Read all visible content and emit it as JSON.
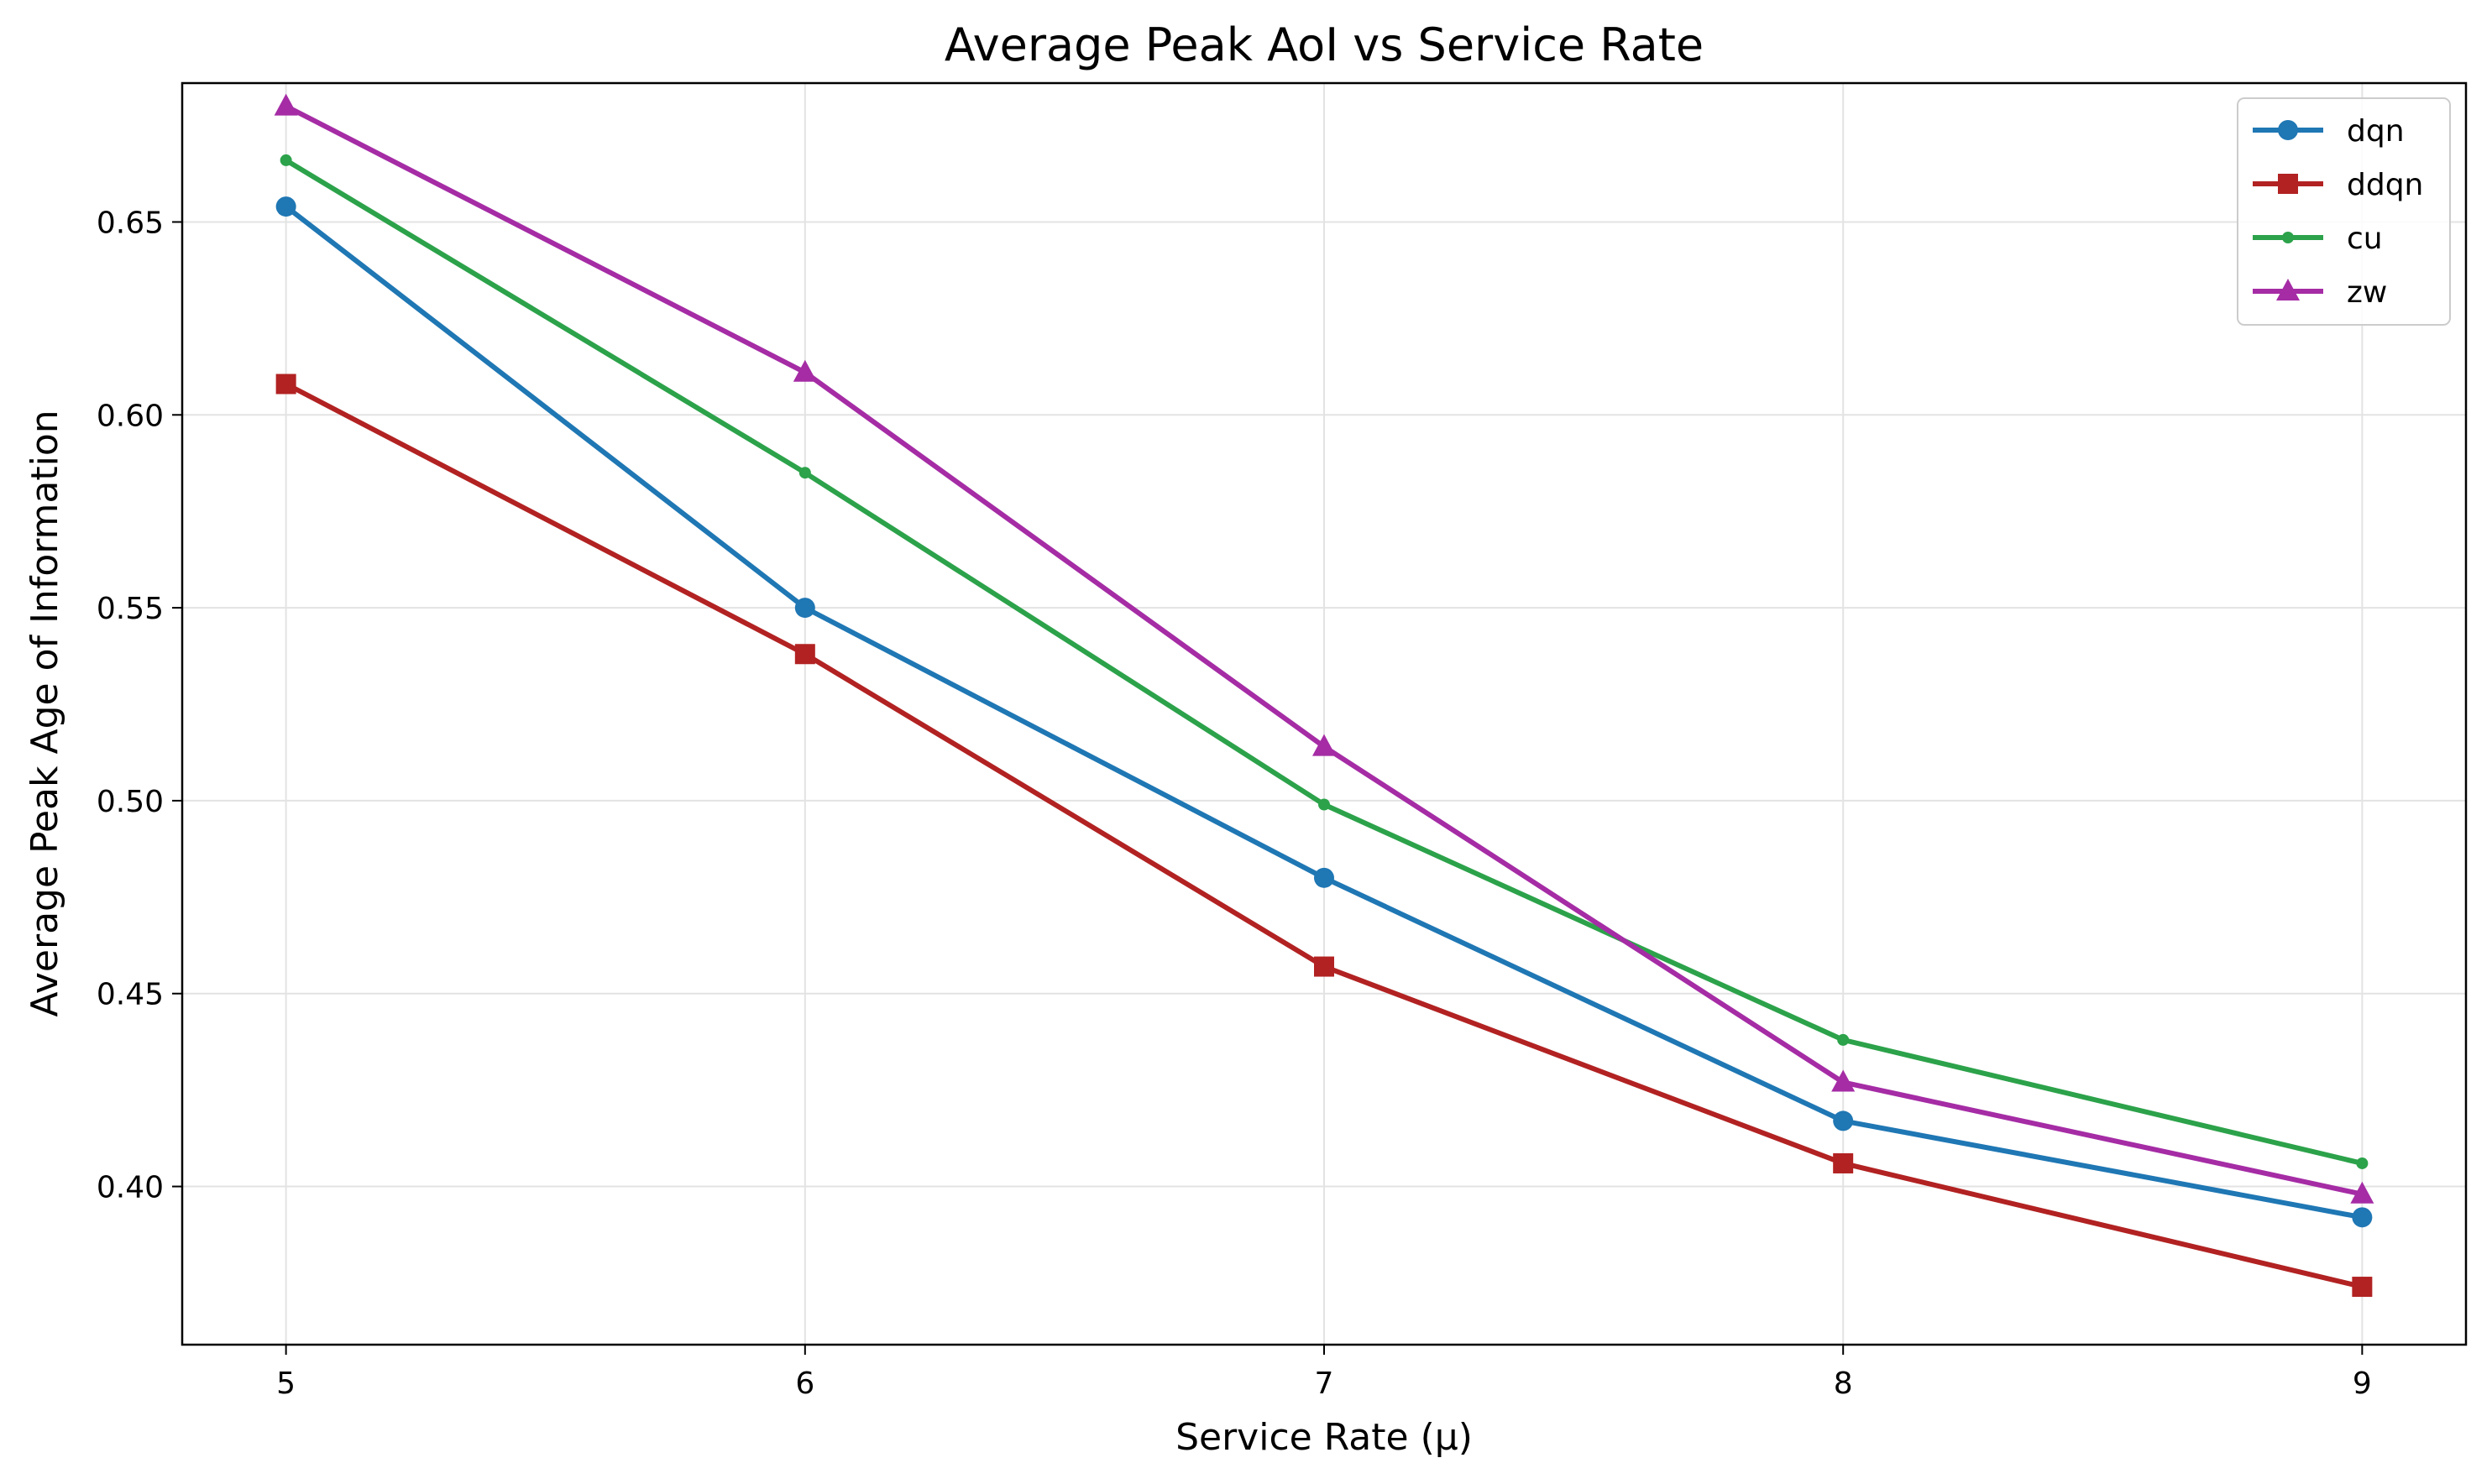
{
  "chart_data": {
    "type": "line",
    "title": "Average Peak AoI vs Service Rate",
    "xlabel": "Service Rate (μ)",
    "ylabel": "Average Peak Age of Information",
    "x": [
      5,
      6,
      7,
      8,
      9
    ],
    "xlim": [
      4.8,
      9.2
    ],
    "ylim": [
      0.359,
      0.686
    ],
    "xticks": [
      5,
      6,
      7,
      8,
      9
    ],
    "yticks": [
      0.4,
      0.45,
      0.5,
      0.55,
      0.6,
      0.65
    ],
    "ytick_labels": [
      "0.40",
      "0.45",
      "0.50",
      "0.55",
      "0.60",
      "0.65"
    ],
    "grid": true,
    "legend_position": "top-right",
    "series": [
      {
        "name": "dqn",
        "color": "#1f77b4",
        "marker": "circle",
        "values": [
          0.654,
          0.55,
          0.48,
          0.417,
          0.392
        ]
      },
      {
        "name": "ddqn",
        "color": "#b22222",
        "marker": "square",
        "values": [
          0.608,
          0.538,
          0.457,
          0.406,
          0.374
        ]
      },
      {
        "name": "cu",
        "color": "#2ca24a",
        "marker": "dot",
        "values": [
          0.666,
          0.585,
          0.499,
          0.438,
          0.406
        ]
      },
      {
        "name": "zw",
        "color": "#a52ca5",
        "marker": "triangle",
        "values": [
          0.68,
          0.611,
          0.514,
          0.427,
          0.398
        ]
      }
    ]
  }
}
